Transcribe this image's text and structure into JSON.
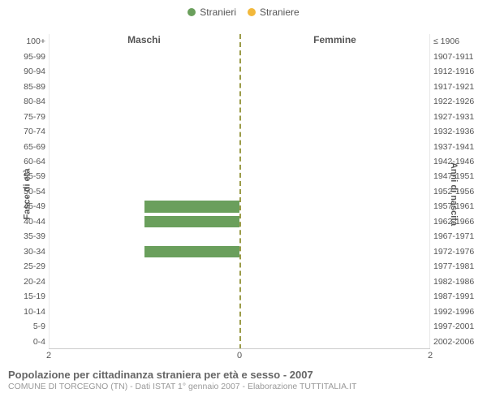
{
  "legend": [
    {
      "label": "Stranieri",
      "color": "#6a9f5c"
    },
    {
      "label": "Straniere",
      "color": "#f2b83b"
    }
  ],
  "columns": {
    "left_title": "Maschi",
    "right_title": "Femmine"
  },
  "axis_labels": {
    "left": "Fasce di età",
    "right": "Anni di nascita"
  },
  "chart": {
    "type": "population-pyramid",
    "xmax": 2,
    "x_ticks": {
      "left": [
        2,
        0
      ],
      "right": [
        0,
        2
      ]
    },
    "bar_color_male": "#6a9f5c",
    "bar_color_female": "#f2b83b",
    "center_line_color": "#9b9b47",
    "background_color": "#ffffff",
    "grid_color": "#e8e8e8",
    "label_fontsize": 10.5,
    "rows": [
      {
        "age": "100+",
        "birth": "≤ 1906",
        "m": 0,
        "f": 0
      },
      {
        "age": "95-99",
        "birth": "1907-1911",
        "m": 0,
        "f": 0
      },
      {
        "age": "90-94",
        "birth": "1912-1916",
        "m": 0,
        "f": 0
      },
      {
        "age": "85-89",
        "birth": "1917-1921",
        "m": 0,
        "f": 0
      },
      {
        "age": "80-84",
        "birth": "1922-1926",
        "m": 0,
        "f": 0
      },
      {
        "age": "75-79",
        "birth": "1927-1931",
        "m": 0,
        "f": 0
      },
      {
        "age": "70-74",
        "birth": "1932-1936",
        "m": 0,
        "f": 0
      },
      {
        "age": "65-69",
        "birth": "1937-1941",
        "m": 0,
        "f": 0
      },
      {
        "age": "60-64",
        "birth": "1942-1946",
        "m": 0,
        "f": 0
      },
      {
        "age": "55-59",
        "birth": "1947-1951",
        "m": 0,
        "f": 0
      },
      {
        "age": "50-54",
        "birth": "1952-1956",
        "m": 0,
        "f": 0
      },
      {
        "age": "45-49",
        "birth": "1957-1961",
        "m": 1,
        "f": 0
      },
      {
        "age": "40-44",
        "birth": "1962-1966",
        "m": 1,
        "f": 0
      },
      {
        "age": "35-39",
        "birth": "1967-1971",
        "m": 0,
        "f": 0
      },
      {
        "age": "30-34",
        "birth": "1972-1976",
        "m": 1,
        "f": 0
      },
      {
        "age": "25-29",
        "birth": "1977-1981",
        "m": 0,
        "f": 0
      },
      {
        "age": "20-24",
        "birth": "1982-1986",
        "m": 0,
        "f": 0
      },
      {
        "age": "15-19",
        "birth": "1987-1991",
        "m": 0,
        "f": 0
      },
      {
        "age": "10-14",
        "birth": "1992-1996",
        "m": 0,
        "f": 0
      },
      {
        "age": "5-9",
        "birth": "1997-2001",
        "m": 0,
        "f": 0
      },
      {
        "age": "0-4",
        "birth": "2002-2006",
        "m": 0,
        "f": 0
      }
    ]
  },
  "footer": {
    "title": "Popolazione per cittadinanza straniera per età e sesso - 2007",
    "subtitle": "COMUNE DI TORCEGNO (TN) - Dati ISTAT 1° gennaio 2007 - Elaborazione TUTTITALIA.IT"
  }
}
